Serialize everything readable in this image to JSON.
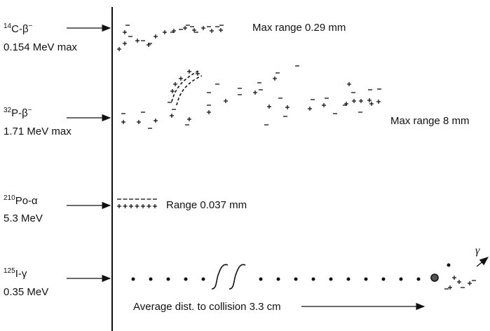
{
  "rows": [
    {
      "mass": "14",
      "symbol": "C-β",
      "charge": "−",
      "energy": "0.154 MeV max",
      "range": "Max range 0.29 mm"
    },
    {
      "mass": "32",
      "symbol": "P-β",
      "charge": "−",
      "energy": "1.71 MeV max",
      "range": "Max range 8 mm"
    },
    {
      "mass": "210",
      "symbol": "Po-α",
      "energy": "5.3 MeV",
      "range": "Range 0.037 mm"
    },
    {
      "mass": "125",
      "symbol": "I-γ",
      "energy": "0.35 MeV",
      "gamma": "γ",
      "range": "Average dist. to collision 3.3 cm"
    }
  ]
}
